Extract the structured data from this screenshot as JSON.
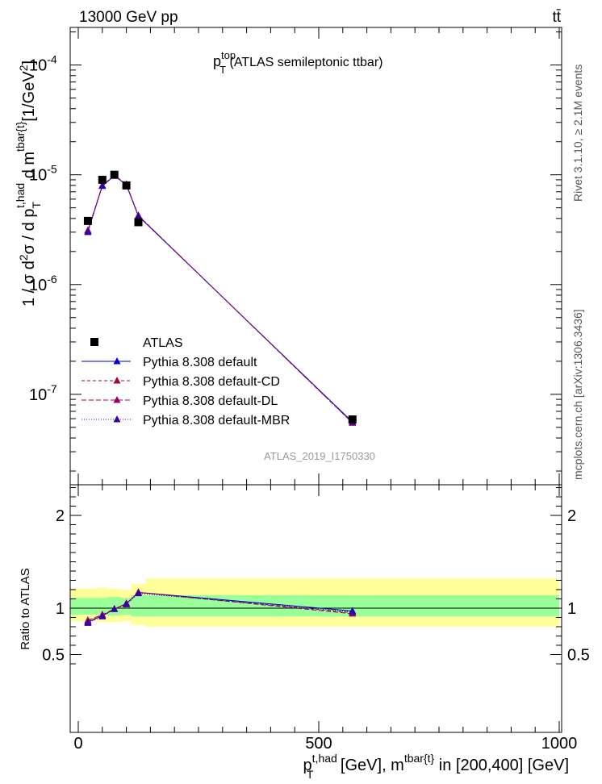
{
  "header": {
    "energy_label": "13000 GeV pp",
    "process_label": "tt̄",
    "rivet_label": "Rivet 3.1.10, ≥ 2.1M events",
    "source_label": "mcplots.cern.ch [arXiv:1306.3436]",
    "analysis_id": "ATLAS_2019_I1750330"
  },
  "chart_data": {
    "type": "line",
    "title": {
      "main": "p",
      "sup": "top",
      "sub": "T",
      "rest": " (ATLAS semileptonic ttbar)"
    },
    "xlabel": {
      "p": "p",
      "sup1": "t,had",
      "sub1": "T",
      "mid": " [GeV], m",
      "sup2": "tbar{t}",
      "end": " in [200,400] [GeV]"
    },
    "ylabel": {
      "a": "1 / σ d",
      "s1": "2",
      "b": "σ / d p",
      "sub": "T",
      "s2": "t,had",
      "c": " d m",
      "s3": "tbar{t}",
      "d": "[1/GeV",
      "s4": "2",
      "e": "]"
    },
    "ratio_ylabel": "Ratio to ATLAS",
    "xlim": [
      0,
      1000
    ],
    "ylim_main": [
      1.5e-08,
      0.00022
    ],
    "yscale_main": "log",
    "ylim_ratio": [
      0.4,
      2.3
    ],
    "x_tick_labels": [
      "0",
      "500",
      "1000"
    ],
    "y_tick_labels_main": [
      "10",
      "10",
      "10",
      "10"
    ],
    "y_tick_exponents_main": [
      "-4",
      "-5",
      "-6",
      "-7"
    ],
    "y_tick_values_main": [
      0.0001,
      1e-05,
      1e-06,
      1e-07
    ],
    "y_tick_labels_ratio": [
      "2",
      "1",
      "0.5"
    ],
    "y_tick_values_ratio": [
      2,
      1,
      0.5
    ],
    "data": {
      "name": "ATLAS",
      "x": [
        20,
        50,
        75,
        100,
        125,
        570
      ],
      "y": [
        3.8e-06,
        9e-06,
        1e-05,
        8e-06,
        3.7e-06,
        5.9e-08
      ]
    },
    "bin_edges": [
      0,
      40,
      60,
      90,
      110,
      140,
      1000
    ],
    "bands": {
      "inner": [
        [
          0.93,
          1.11
        ],
        [
          0.93,
          1.11
        ],
        [
          0.92,
          1.12
        ],
        [
          0.93,
          1.11
        ],
        [
          0.91,
          1.14
        ],
        [
          0.91,
          1.14
        ]
      ],
      "outer": [
        [
          0.86,
          1.21
        ],
        [
          0.85,
          1.22
        ],
        [
          0.85,
          1.21
        ],
        [
          0.86,
          1.2
        ],
        [
          0.82,
          1.26
        ],
        [
          0.8,
          1.32
        ]
      ]
    },
    "series": [
      {
        "name": "Pythia 8.308 default",
        "color": "#0000cc",
        "dash": "",
        "y": [
          3.05e-06,
          7.9e-06,
          9.8e-06,
          8.1e-06,
          4.2e-06,
          5.6e-08
        ],
        "ratio": [
          0.85,
          0.92,
          0.99,
          1.05,
          1.17,
          0.97
        ]
      },
      {
        "name": "Pythia 8.308 default-CD",
        "color": "#aa0044",
        "dash": "4,3",
        "y": [
          3.1e-06,
          7.95e-06,
          9.85e-06,
          8.15e-06,
          4.25e-06,
          5.5e-08
        ],
        "ratio": [
          0.86,
          0.92,
          0.99,
          1.05,
          1.17,
          0.95
        ]
      },
      {
        "name": "Pythia 8.308 default-DL",
        "color": "#990066",
        "dash": "6,3",
        "y": [
          3.12e-06,
          8e-06,
          9.9e-06,
          8.2e-06,
          4.25e-06,
          5.5e-08
        ],
        "ratio": [
          0.87,
          0.93,
          0.99,
          1.05,
          1.17,
          0.94
        ]
      },
      {
        "name": "Pythia 8.308 default-MBR",
        "color": "#3300aa",
        "dash": "1,2",
        "y": [
          3e-06,
          7.9e-06,
          9.8e-06,
          8.1e-06,
          4.2e-06,
          5.6e-08
        ],
        "ratio": [
          0.84,
          0.91,
          0.99,
          1.04,
          1.16,
          0.96
        ]
      }
    ],
    "legend_placement": "lower-left",
    "band_colors": {
      "inner": "#99ff99",
      "outer": "#ffff99"
    }
  }
}
